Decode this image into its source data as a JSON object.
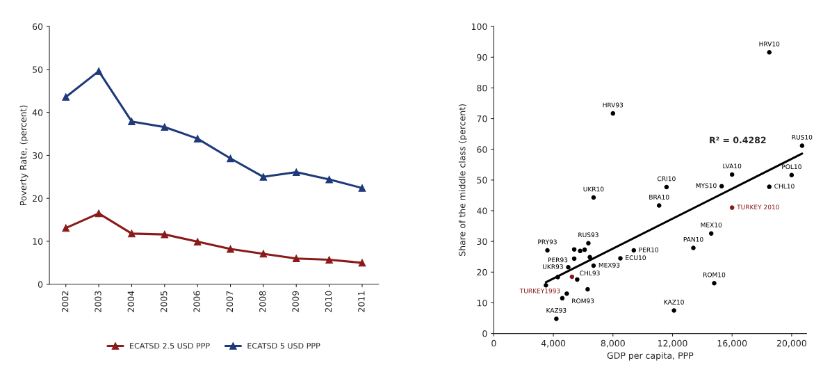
{
  "chart_data": [
    {
      "type": "line",
      "ylabel": "Poverty Rate, (percent)",
      "categories": [
        "2002",
        "2003",
        "2004",
        "2005",
        "2006",
        "2007",
        "2008",
        "2009",
        "2010",
        "2011"
      ],
      "series": [
        {
          "name": "ECATSD 2.5 USD PPP",
          "color": "#8b1a1a",
          "values": [
            13.1,
            16.5,
            11.8,
            11.6,
            9.9,
            8.2,
            7.1,
            6.0,
            5.7,
            5.0
          ]
        },
        {
          "name": "ECATSD 5 USD PPP",
          "color": "#1f3a7a",
          "values": [
            43.6,
            49.6,
            37.9,
            36.6,
            33.9,
            29.3,
            25.0,
            26.1,
            24.4,
            22.4
          ]
        }
      ],
      "ylim": [
        0,
        60
      ],
      "yticks": [
        0,
        10,
        20,
        30,
        40,
        50,
        60
      ],
      "marker": "triangle",
      "legend": "bottom",
      "grid": false
    },
    {
      "type": "scatter",
      "xlabel": "GDP per capita, PPP",
      "ylabel": "Share of the middle class (percent)",
      "series": [
        {
          "color": "#000000",
          "x": [
            18500,
            8000,
            20700,
            16000,
            20000,
            15300,
            18500,
            11600,
            6700,
            11100,
            14600,
            13400,
            9400,
            8500,
            3600,
            6350,
            5400,
            5800,
            6100,
            5400,
            6450,
            6700,
            5000,
            4300,
            5600,
            3500,
            4900,
            4600,
            6300,
            4200,
            12100,
            14800
          ],
          "values": [
            91.6,
            71.7,
            61.2,
            51.8,
            51.6,
            48.0,
            47.8,
            47.7,
            44.3,
            41.7,
            32.6,
            27.9,
            27.1,
            24.5,
            27.1,
            29.4,
            27.4,
            26.9,
            27.3,
            24.4,
            24.9,
            22.1,
            21.6,
            18.4,
            17.6,
            15.7,
            13.0,
            11.5,
            14.4,
            4.8,
            7.5,
            16.4
          ]
        },
        {
          "color": "#8b1a1a",
          "x": [
            16000,
            5250
          ],
          "values": [
            41.0,
            18.5
          ]
        },
        {
          "type": "line",
          "marker": "none",
          "color": "#000000",
          "x": [
            3500,
            20700
          ],
          "values": [
            16.7,
            58.6
          ]
        }
      ],
      "annotations": [
        {
          "text": "HRV10",
          "x": 18500,
          "y": 91.6
        },
        {
          "text": "HRV93",
          "x": 8000,
          "y": 71.7
        },
        {
          "text": "RUS10",
          "x": 20700,
          "y": 61.2
        },
        {
          "text": "LVA10",
          "x": 16000,
          "y": 51.8
        },
        {
          "text": "POL10",
          "x": 20000,
          "y": 51.6
        },
        {
          "text": "MYS10",
          "x": 15300,
          "y": 48.0
        },
        {
          "text": "CHL10",
          "x": 18500,
          "y": 47.8
        },
        {
          "text": "CRI10",
          "x": 11600,
          "y": 47.7
        },
        {
          "text": "UKR10",
          "x": 6700,
          "y": 44.3
        },
        {
          "text": "BRA10",
          "x": 11100,
          "y": 41.7
        },
        {
          "text": "TURKEY 2010",
          "x": 16000,
          "y": 41.0
        },
        {
          "text": "MEX10",
          "x": 14600,
          "y": 32.6
        },
        {
          "text": "PAN10",
          "x": 13400,
          "y": 27.9
        },
        {
          "text": "PER10",
          "x": 9400,
          "y": 27.1
        },
        {
          "text": "ECU10",
          "x": 8500,
          "y": 24.5
        },
        {
          "text": "PRY93",
          "x": 3600,
          "y": 27.1
        },
        {
          "text": "RUS93",
          "x": 6350,
          "y": 29.4
        },
        {
          "text": "CHL93",
          "x": 6450,
          "y": 24.9
        },
        {
          "text": "MEX93",
          "x": 6700,
          "y": 22.1
        },
        {
          "text": "UKR93",
          "x": 5000,
          "y": 21.6
        },
        {
          "text": "PER93",
          "x": 4300,
          "y": 18.4
        },
        {
          "text": "TURKEY1993",
          "x": 5250,
          "y": 18.5
        },
        {
          "text": "ROM93",
          "x": 4900,
          "y": 13.0
        },
        {
          "text": "KAZ93",
          "x": 4200,
          "y": 4.8
        },
        {
          "text": "KAZ10",
          "x": 12100,
          "y": 7.5
        },
        {
          "text": "ROM10",
          "x": 14800,
          "y": 16.4
        },
        "R² = 0.4282"
      ],
      "xlim": [
        0,
        21000
      ],
      "xticks": [
        0,
        {
          "value": 4000,
          "label": "4,000"
        },
        {
          "value": 8000,
          "label": "8,000"
        },
        {
          "value": 12000,
          "label": "12,000"
        },
        {
          "value": 16000,
          "label": "16,000"
        },
        {
          "value": 20000,
          "label": "20,000"
        }
      ],
      "ylim": [
        0,
        100
      ],
      "yticks": [
        0,
        10,
        20,
        30,
        40,
        50,
        60,
        70,
        80,
        90,
        100
      ],
      "marker": "circle",
      "grid": false
    }
  ]
}
